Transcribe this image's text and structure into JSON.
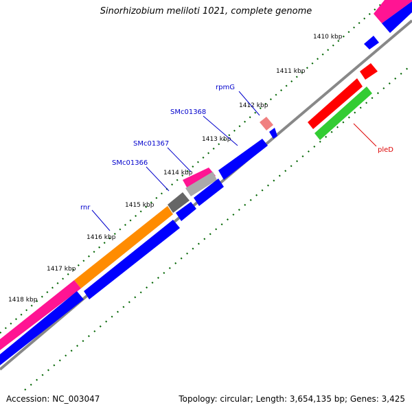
{
  "title": "Sinorhizobium meliloti 1021, complete genome",
  "footer": {
    "accession": "Accession: NC_003047",
    "summary": "Topology: circular; Length: 3,654,135 bp; Genes: 3,425"
  },
  "colors": {
    "backbone": "#888888",
    "cds": "#0000ff",
    "cds_forward_rna": "#ff0000",
    "rrna_orange": "#ff8c00",
    "trna_pink": "#ff1493",
    "rna_gray": "#666666",
    "pled_green": "#33cc33",
    "tick": "#006400",
    "label_blue": "#0000cc",
    "label_red": "#dd0000"
  },
  "ticks": [
    "1410 kbp",
    "1411 kbp",
    "1412 kbp",
    "1413 kbp",
    "1414 kbp",
    "1415 kbp",
    "1416 kbp",
    "1417 kbp",
    "1418 kbp"
  ],
  "gene_labels": [
    {
      "name": "rpmG",
      "color": "label_blue"
    },
    {
      "name": "SMc01368",
      "color": "label_blue"
    },
    {
      "name": "SMc01367",
      "color": "label_blue"
    },
    {
      "name": "SMc01366",
      "color": "label_blue"
    },
    {
      "name": "rnr",
      "color": "label_blue"
    },
    {
      "name": "pleD",
      "color": "label_red"
    }
  ]
}
